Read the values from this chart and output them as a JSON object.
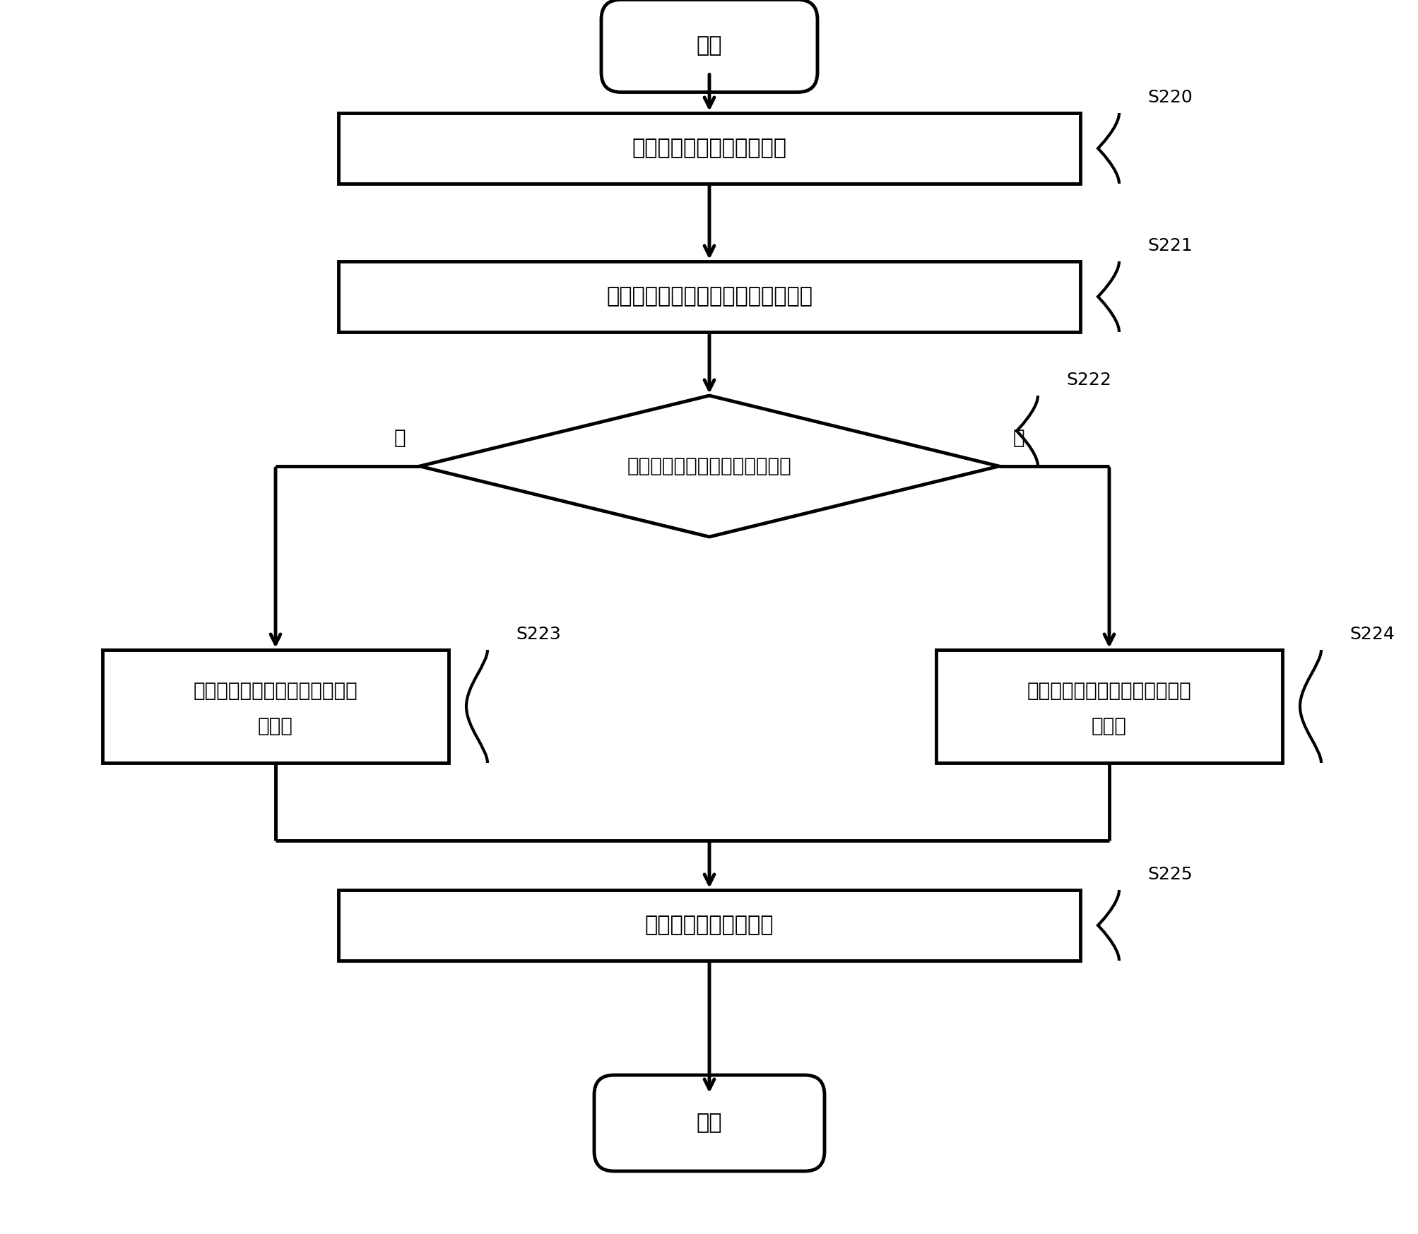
{
  "bg_color": "#ffffff",
  "line_color": "#000000",
  "text_color": "#000000",
  "font_size_main": 22,
  "font_size_label": 20,
  "font_size_step": 18,
  "start_end_text": [
    "开始",
    "结束"
  ],
  "box_texts": [
    "获取与用户对应的历史记录",
    "根据所述历史记录确定所述信用等级",
    "向用户提供所述验证码"
  ],
  "diamond_text": "所述信用等级高于第一阈値吗？",
  "left_box_line1": "确定所述验证码的长度属性为第",
  "left_box_line2": "一长度",
  "right_box_line1": "确定所述验证码的长度属性为第",
  "right_box_line2": "二长度",
  "step_labels": [
    "S220",
    "S221",
    "S222",
    "S223",
    "S224",
    "S225"
  ],
  "yes_label": "是",
  "no_label": "否"
}
